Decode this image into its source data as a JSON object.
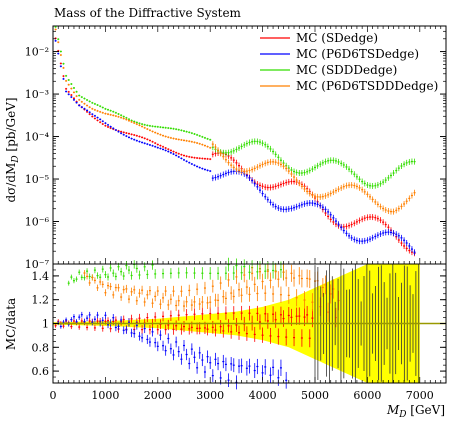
{
  "chart_data": [
    {
      "type": "scatter",
      "panel": "main",
      "title": "Mass of the Diffractive System",
      "ylabel": "dσ/dM_D [pb/GeV]",
      "xlim": [
        0,
        7500
      ],
      "ylim": [
        1e-07,
        0.04
      ],
      "yscale": "log",
      "y_ticks": [
        0.01,
        0.001,
        0.0001,
        1e-05,
        1e-06,
        1e-07
      ],
      "y_tick_labels": [
        "10⁻²",
        "10⁻³",
        "10⁻⁴",
        "10⁻⁵",
        "10⁻⁶",
        "10⁻⁷"
      ],
      "grid": false,
      "legend_position": "top-right",
      "series": [
        {
          "name": "MC (SDedge)",
          "color": "#ff0000",
          "x": [
            50,
            250,
            500,
            750,
            1000,
            1500,
            2000,
            2500,
            3000,
            3500,
            4000,
            4500,
            5000,
            5500,
            6000,
            6500,
            6950
          ],
          "y": [
            0.02,
            0.0012,
            0.0005,
            0.0003,
            0.0002,
            0.00011,
            6e-05,
            4e-05,
            2.8e-05,
            1.8e-05,
            1.2e-05,
            6e-06,
            3e-06,
            1.3e-06,
            8e-07,
            5e-07,
            3e-07
          ]
        },
        {
          "name": "MC (P6D6TSDedge)",
          "color": "#0000ff",
          "x": [
            50,
            250,
            500,
            750,
            1000,
            1500,
            2000,
            2500,
            3000,
            3500,
            4000,
            4500,
            5000,
            5500,
            6000,
            6500,
            6950
          ],
          "y": [
            0.02,
            0.0012,
            0.0005,
            0.0003,
            0.0002,
            0.0001,
            5e-05,
            2.8e-05,
            1.7e-05,
            9e-06,
            5e-06,
            3e-06,
            1.5e-06,
            9e-07,
            5e-07,
            3e-07,
            2e-07
          ]
        },
        {
          "name": "MC (SDDDedge)",
          "color": "#33dd00",
          "x": [
            50,
            250,
            500,
            750,
            1000,
            1500,
            2000,
            2500,
            3000,
            3500,
            4000,
            4500,
            5000,
            5500,
            6000,
            6500,
            6950
          ],
          "y": [
            0.04,
            0.003,
            0.001,
            0.0006,
            0.0004,
            0.00025,
            0.00018,
            0.00012,
            9e-05,
            6e-05,
            4e-05,
            2.8e-05,
            2e-05,
            1.4e-05,
            1.2e-05,
            1.3e-05,
            1.5e-05
          ]
        },
        {
          "name": "MC (P6D6TSDDDedge)",
          "color": "#ff8000",
          "x": [
            50,
            250,
            500,
            750,
            1000,
            1500,
            2000,
            2500,
            3000,
            3500,
            4000,
            4500,
            5000,
            5500,
            6000,
            6500,
            6950
          ],
          "y": [
            0.03,
            0.002,
            0.0008,
            0.0005,
            0.00035,
            0.0002,
            0.00013,
            8e-05,
            5e-05,
            3e-05,
            1.8e-05,
            1.1e-05,
            7e-06,
            4.5e-06,
            3.5e-06,
            3e-06,
            4e-06
          ]
        }
      ]
    },
    {
      "type": "scatter",
      "panel": "ratio",
      "xlabel": "M_D [GeV]",
      "ylabel": "MC/data",
      "xlim": [
        0,
        7500
      ],
      "ylim": [
        0.5,
        1.5
      ],
      "x_ticks": [
        0,
        1000,
        2000,
        3000,
        4000,
        5000,
        6000,
        7000
      ],
      "x_tick_labels": [
        "0",
        "1000",
        "2000",
        "3000",
        "4000",
        "5000",
        "6000",
        "7000"
      ],
      "y_ticks": [
        0.6,
        0.8,
        1.0,
        1.2,
        1.4
      ],
      "y_tick_labels": [
        "0.6",
        "0.8",
        "1",
        "1.2",
        "1.4"
      ],
      "reference_line": 1.0,
      "reference_color": "#999900",
      "uncertainty_band": {
        "color": "#ffff00",
        "x": [
          0,
          500,
          1000,
          1500,
          2000,
          2500,
          3000,
          3500,
          4000,
          4500,
          5000,
          5500,
          6000,
          6500,
          7000
        ],
        "half_width": [
          0.01,
          0.015,
          0.02,
          0.03,
          0.04,
          0.06,
          0.08,
          0.1,
          0.14,
          0.2,
          0.3,
          0.4,
          0.5,
          0.5,
          0.5
        ]
      },
      "series": [
        {
          "name": "MC (SDedge)",
          "color": "#ff0000",
          "x": [
            50,
            500,
            1000,
            1500,
            2000,
            2500,
            3000,
            3500,
            4000,
            4500,
            5000
          ],
          "y": [
            1.0,
            1.0,
            1.0,
            1.0,
            1.0,
            1.0,
            1.0,
            1.0,
            1.0,
            1.0,
            1.0
          ]
        },
        {
          "name": "MC (P6D6TSDedge)",
          "color": "#0000ff",
          "x": [
            100,
            500,
            1000,
            1500,
            2000,
            2500,
            3000,
            3500,
            4000,
            4500
          ],
          "y": [
            0.99,
            1.05,
            1.03,
            0.95,
            0.85,
            0.75,
            0.65,
            0.6,
            0.56,
            0.52
          ]
        },
        {
          "name": "MC (SDDDedge)",
          "color": "#33dd00",
          "x": [
            300,
            500,
            1000,
            1500,
            2000,
            2500,
            3000,
            3500,
            4000,
            4500
          ],
          "y": [
            1.35,
            1.4,
            1.42,
            1.45,
            1.48,
            1.5,
            1.5,
            1.5,
            1.5,
            1.5
          ]
        },
        {
          "name": "MC (P6D6TSDDDedge)",
          "color": "#ff8000",
          "x": [
            600,
            1000,
            1500,
            2000,
            2500,
            3000,
            3500,
            4000,
            4500,
            5000,
            5500
          ],
          "y": [
            1.4,
            1.3,
            1.25,
            1.22,
            1.2,
            1.22,
            1.3,
            1.35,
            1.35,
            1.3,
            1.15
          ]
        }
      ]
    }
  ]
}
